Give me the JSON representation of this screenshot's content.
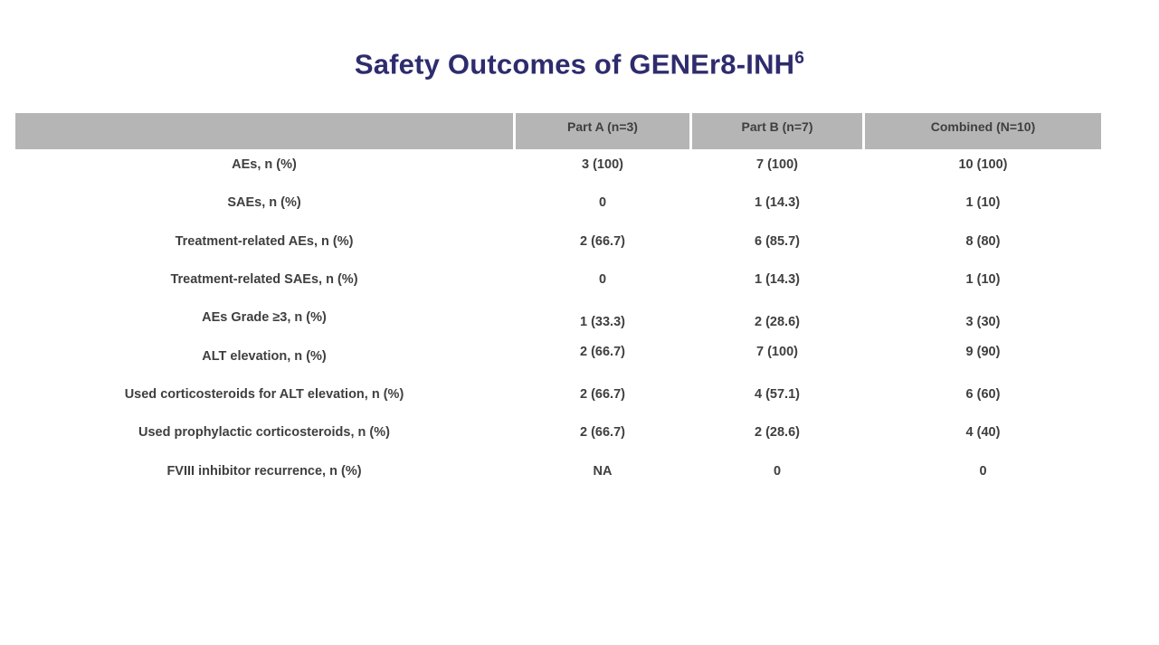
{
  "title": {
    "text": "Safety Outcomes of GENEr8-INH",
    "superscript": "6"
  },
  "table": {
    "headers": [
      "",
      "Part A (n=3)",
      "Part B (n=7)",
      "Combined (N=10)"
    ],
    "rows": [
      {
        "label": "AEs, n (%)",
        "part_a": "3 (100)",
        "part_b": "7 (100)",
        "combined": "10 (100)"
      },
      {
        "label": "SAEs, n (%)",
        "part_a": "0",
        "part_b": "1 (14.3)",
        "combined": "1 (10)"
      },
      {
        "label": "Treatment-related AEs, n (%)",
        "part_a": "2 (66.7)",
        "part_b": "6 (85.7)",
        "combined": "8 (80)"
      },
      {
        "label": "Treatment-related SAEs, n (%)",
        "part_a": "0",
        "part_b": "1 (14.3)",
        "combined": "1 (10)"
      },
      {
        "label": "AEs Grade ≥3, n (%)",
        "part_a": "1 (33.3)",
        "part_b": "2 (28.6)",
        "combined": "3 (30)"
      },
      {
        "label": "ALT elevation, n (%)",
        "part_a": "2 (66.7)",
        "part_b": "7 (100)",
        "combined": "9 (90)"
      },
      {
        "label": "Used corticosteroids for ALT elevation, n (%)",
        "part_a": "2 (66.7)",
        "part_b": "4 (57.1)",
        "combined": "6 (60)"
      },
      {
        "label": "Used prophylactic corticosteroids, n (%)",
        "part_a": "2 (66.7)",
        "part_b": "2 (28.6)",
        "combined": "4 (40)"
      },
      {
        "label": "FVIII inhibitor recurrence, n (%)",
        "part_a": "NA",
        "part_b": "0",
        "combined": "0"
      }
    ]
  },
  "colors": {
    "title_text": "#2E2C6D",
    "header_background": "#B5B5B5",
    "body_text": "#3F3F3F",
    "slide_background": "#FFFFFF"
  }
}
